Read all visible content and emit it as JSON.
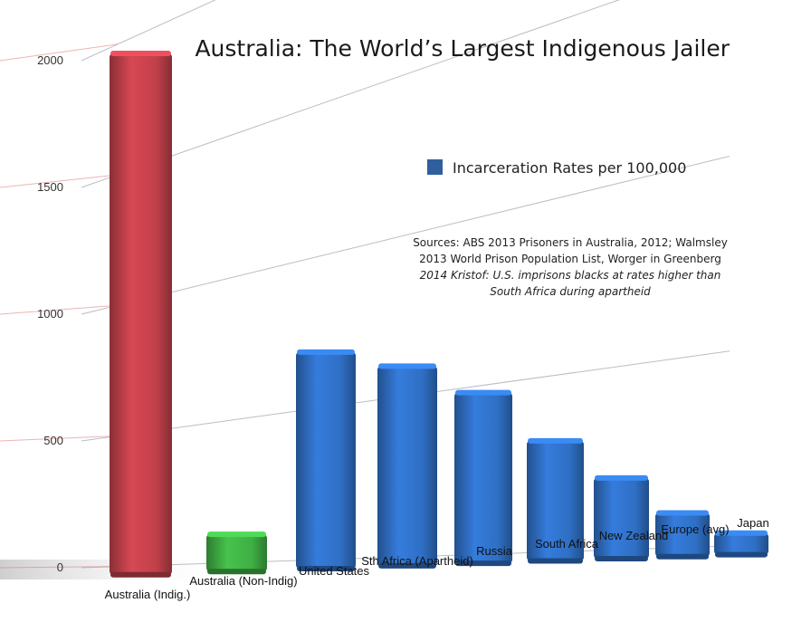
{
  "chart_data": {
    "type": "bar",
    "title": "Australia: The World’s Largest Indigenous Jailer",
    "xlabel": "",
    "ylabel": "",
    "ylim": [
      0,
      2000
    ],
    "yticks": [
      "0",
      "500",
      "1000",
      "1500",
      "2000"
    ],
    "grid": true,
    "legend_position": "top-right",
    "categories": [
      "Australia (Indig.)",
      "Australia (Non-Indig)",
      "United States",
      "Sth Africa (Apartheid)",
      "Russia",
      "South Africa",
      "New Zealand",
      "Europe (avg)",
      "Japan"
    ],
    "series": [
      {
        "name": "Incarceration Rates per 100,000",
        "values": [
          1960,
          130,
          710,
          620,
          505,
          340,
          220,
          115,
          55
        ]
      }
    ],
    "bar_colors": [
      "#c0404a",
      "#3fae44",
      "#2f6fc4",
      "#2f6fc4",
      "#2f6fc4",
      "#2f6fc4",
      "#2f6fc4",
      "#2f6fc4",
      "#2f6fc4"
    ],
    "legend_color": "#2f5f9e",
    "sources": [
      "Sources: ABS 2013 Prisoners in Australia, 2012; Walmsley",
      "2013 World Prison Population List, Worger in Greenberg",
      "2014 Kristof: U.S. imprisons blacks at rates higher than",
      "South Africa during apartheid"
    ]
  }
}
